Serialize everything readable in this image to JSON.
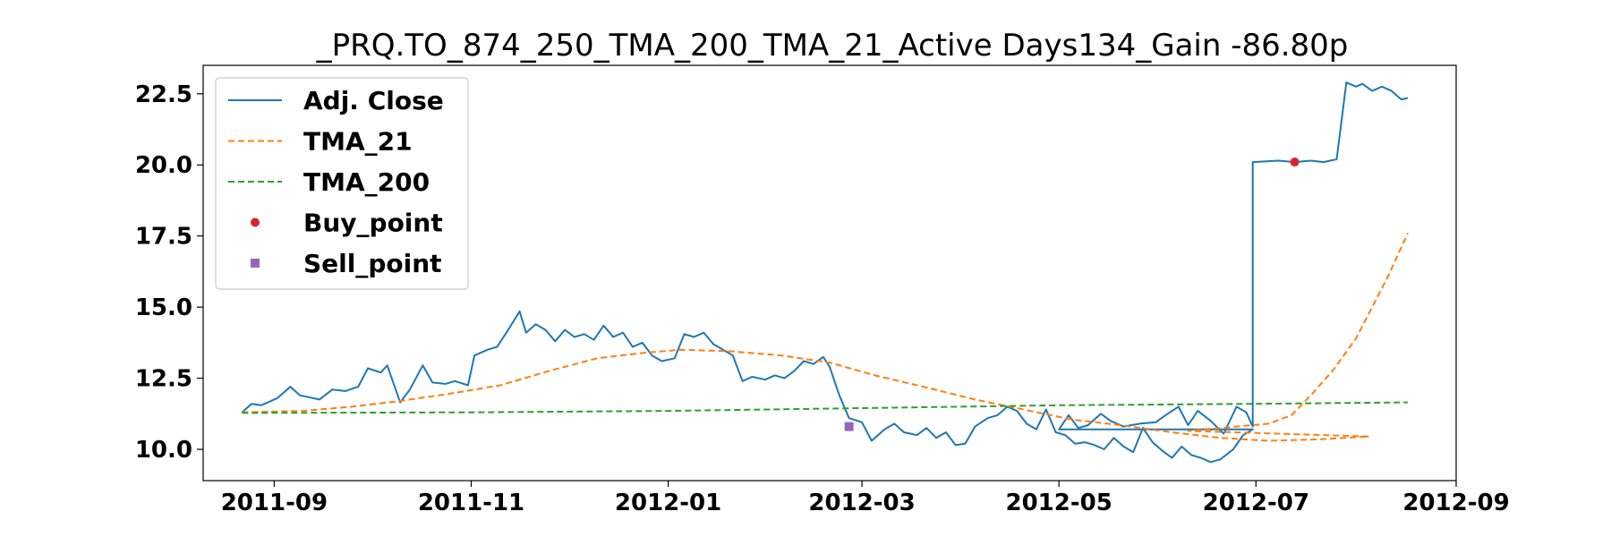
{
  "chart_data": {
    "type": "line",
    "title": "_PRQ.TO_874_250_TMA_200_TMA_21_Active Days134_Gain -86.80p",
    "xlabel": "",
    "ylabel": "",
    "x_ticks": [
      "2011-09",
      "2011-11",
      "2012-01",
      "2012-03",
      "2012-05",
      "2012-07",
      "2012-09"
    ],
    "y_ticks": [
      "10.0",
      "12.5",
      "15.0",
      "17.5",
      "20.0",
      "22.5"
    ],
    "xlim": [
      "2011-08-10",
      "2012-09-01"
    ],
    "ylim": [
      8.9,
      23.5
    ],
    "grid": false,
    "legend_position": "top-left",
    "series": [
      {
        "name": "Adj. Close",
        "style": "solid",
        "color": "#1f77b4",
        "points": [
          [
            "2011-08-22",
            11.3
          ],
          [
            "2011-08-25",
            11.6
          ],
          [
            "2011-08-28",
            11.55
          ],
          [
            "2011-09-02",
            11.8
          ],
          [
            "2011-09-06",
            12.2
          ],
          [
            "2011-09-09",
            11.9
          ],
          [
            "2011-09-15",
            11.75
          ],
          [
            "2011-09-19",
            12.1
          ],
          [
            "2011-09-23",
            12.05
          ],
          [
            "2011-09-27",
            12.2
          ],
          [
            "2011-09-30",
            12.85
          ],
          [
            "2011-10-04",
            12.7
          ],
          [
            "2011-10-06",
            12.95
          ],
          [
            "2011-10-10",
            11.65
          ],
          [
            "2011-10-13",
            12.1
          ],
          [
            "2011-10-17",
            12.95
          ],
          [
            "2011-10-20",
            12.35
          ],
          [
            "2011-10-24",
            12.3
          ],
          [
            "2011-10-27",
            12.4
          ],
          [
            "2011-10-31",
            12.25
          ],
          [
            "2011-11-02",
            13.3
          ],
          [
            "2011-11-06",
            13.5
          ],
          [
            "2011-11-09",
            13.6
          ],
          [
            "2011-11-13",
            14.3
          ],
          [
            "2011-11-16",
            14.85
          ],
          [
            "2011-11-18",
            14.1
          ],
          [
            "2011-11-21",
            14.4
          ],
          [
            "2011-11-24",
            14.2
          ],
          [
            "2011-11-27",
            13.8
          ],
          [
            "2011-11-30",
            14.2
          ],
          [
            "2011-12-03",
            13.95
          ],
          [
            "2011-12-06",
            14.05
          ],
          [
            "2011-12-09",
            13.85
          ],
          [
            "2011-12-12",
            14.35
          ],
          [
            "2011-12-15",
            13.95
          ],
          [
            "2011-12-18",
            14.1
          ],
          [
            "2011-12-21",
            13.6
          ],
          [
            "2011-12-24",
            13.75
          ],
          [
            "2011-12-27",
            13.3
          ],
          [
            "2011-12-30",
            13.1
          ],
          [
            "2012-01-03",
            13.2
          ],
          [
            "2012-01-06",
            14.05
          ],
          [
            "2012-01-09",
            13.95
          ],
          [
            "2012-01-12",
            14.1
          ],
          [
            "2012-01-15",
            13.7
          ],
          [
            "2012-01-18",
            13.5
          ],
          [
            "2012-01-21",
            13.3
          ],
          [
            "2012-01-24",
            12.4
          ],
          [
            "2012-01-27",
            12.55
          ],
          [
            "2012-01-31",
            12.45
          ],
          [
            "2012-02-03",
            12.6
          ],
          [
            "2012-02-06",
            12.5
          ],
          [
            "2012-02-09",
            12.75
          ],
          [
            "2012-02-12",
            13.1
          ],
          [
            "2012-02-15",
            13.0
          ],
          [
            "2012-02-18",
            13.25
          ],
          [
            "2012-02-20",
            12.9
          ],
          [
            "2012-02-23",
            11.9
          ],
          [
            "2012-02-26",
            11.1
          ],
          [
            "2012-03-01",
            10.95
          ],
          [
            "2012-03-04",
            10.3
          ],
          [
            "2012-03-08",
            10.7
          ],
          [
            "2012-03-11",
            10.9
          ],
          [
            "2012-03-14",
            10.6
          ],
          [
            "2012-03-18",
            10.5
          ],
          [
            "2012-03-21",
            10.75
          ],
          [
            "2012-03-24",
            10.4
          ],
          [
            "2012-03-27",
            10.6
          ],
          [
            "2012-03-30",
            10.15
          ],
          [
            "2012-04-02",
            10.2
          ],
          [
            "2012-04-05",
            10.8
          ],
          [
            "2012-04-09",
            11.1
          ],
          [
            "2012-04-12",
            11.2
          ],
          [
            "2012-04-15",
            11.5
          ],
          [
            "2012-04-18",
            11.35
          ],
          [
            "2012-04-21",
            10.9
          ],
          [
            "2012-04-24",
            10.7
          ],
          [
            "2012-04-27",
            11.4
          ],
          [
            "2012-04-30",
            10.6
          ],
          [
            "2012-05-03",
            10.5
          ],
          [
            "2012-05-06",
            10.2
          ],
          [
            "2012-05-09",
            10.25
          ],
          [
            "2012-05-12",
            10.15
          ],
          [
            "2012-05-15",
            10.0
          ],
          [
            "2012-05-18",
            10.4
          ],
          [
            "2012-05-21",
            10.1
          ],
          [
            "2012-05-24",
            9.9
          ],
          [
            "2012-05-27",
            10.75
          ],
          [
            "2012-05-30",
            10.25
          ],
          [
            "2012-06-02",
            9.95
          ],
          [
            "2012-06-05",
            9.7
          ],
          [
            "2012-06-08",
            10.1
          ],
          [
            "2012-06-11",
            9.8
          ],
          [
            "2012-06-14",
            9.7
          ],
          [
            "2012-06-17",
            9.55
          ],
          [
            "2012-06-20",
            9.65
          ],
          [
            "2012-06-24",
            10.0
          ],
          [
            "2012-06-27",
            10.5
          ],
          [
            "2012-06-30",
            10.7
          ],
          [
            "2012-05-01",
            10.7
          ],
          [
            "2012-05-04",
            11.2
          ],
          [
            "2012-05-07",
            10.75
          ],
          [
            "2012-05-10",
            10.85
          ],
          [
            "2012-05-14",
            11.25
          ],
          [
            "2012-05-17",
            11.0
          ],
          [
            "2012-05-21",
            10.8
          ],
          [
            "2012-05-26",
            10.9
          ],
          [
            "2012-05-31",
            10.95
          ],
          [
            "2012-06-03",
            11.2
          ],
          [
            "2012-06-07",
            11.5
          ],
          [
            "2012-06-10",
            10.85
          ],
          [
            "2012-06-13",
            11.35
          ],
          [
            "2012-06-17",
            11.0
          ],
          [
            "2012-06-21",
            10.55
          ],
          [
            "2012-06-25",
            11.5
          ],
          [
            "2012-06-28",
            11.3
          ],
          [
            "2012-06-30",
            10.8
          ],
          [
            "2012-06-30",
            20.1
          ],
          [
            "2012-07-08",
            20.15
          ],
          [
            "2012-07-13",
            20.1
          ],
          [
            "2012-07-18",
            20.15
          ],
          [
            "2012-07-22",
            20.1
          ],
          [
            "2012-07-26",
            20.2
          ],
          [
            "2012-07-29",
            22.9
          ],
          [
            "2012-08-01",
            22.75
          ],
          [
            "2012-08-03",
            22.85
          ],
          [
            "2012-08-06",
            22.6
          ],
          [
            "2012-08-09",
            22.75
          ],
          [
            "2012-08-12",
            22.6
          ],
          [
            "2012-08-15",
            22.3
          ],
          [
            "2012-08-17",
            22.35
          ]
        ]
      },
      {
        "name": "TMA_21",
        "style": "dashed",
        "color": "#ff7f0e",
        "points": [
          [
            "2011-08-22",
            11.3
          ],
          [
            "2011-09-10",
            11.35
          ],
          [
            "2011-09-25",
            11.5
          ],
          [
            "2011-10-10",
            11.7
          ],
          [
            "2011-10-25",
            11.95
          ],
          [
            "2011-11-10",
            12.25
          ],
          [
            "2011-11-25",
            12.75
          ],
          [
            "2011-12-10",
            13.2
          ],
          [
            "2011-12-25",
            13.4
          ],
          [
            "2012-01-05",
            13.5
          ],
          [
            "2012-01-20",
            13.45
          ],
          [
            "2012-02-05",
            13.3
          ],
          [
            "2012-02-20",
            13.05
          ],
          [
            "2012-03-05",
            12.6
          ],
          [
            "2012-03-20",
            12.2
          ],
          [
            "2012-04-05",
            11.75
          ],
          [
            "2012-04-20",
            11.4
          ],
          [
            "2012-05-05",
            11.05
          ],
          [
            "2012-05-20",
            10.85
          ],
          [
            "2012-06-05",
            10.6
          ],
          [
            "2012-06-20",
            10.4
          ],
          [
            "2012-07-05",
            10.3
          ],
          [
            "2012-07-20",
            10.35
          ],
          [
            "2012-08-05",
            10.45
          ],
          [
            "2012-06-10",
            10.65
          ],
          [
            "2012-06-25",
            10.8
          ],
          [
            "2012-07-05",
            10.9
          ],
          [
            "2012-07-12",
            11.2
          ],
          [
            "2012-07-18",
            11.9
          ],
          [
            "2012-07-25",
            12.8
          ],
          [
            "2012-08-01",
            13.9
          ],
          [
            "2012-08-06",
            15.0
          ],
          [
            "2012-08-11",
            16.1
          ],
          [
            "2012-08-17",
            17.6
          ]
        ]
      },
      {
        "name": "TMA_200",
        "style": "dashed",
        "color": "#2ca02c",
        "points": [
          [
            "2011-08-22",
            11.28
          ],
          [
            "2011-11-01",
            11.3
          ],
          [
            "2012-01-01",
            11.35
          ],
          [
            "2012-03-01",
            11.45
          ],
          [
            "2012-05-01",
            11.55
          ],
          [
            "2012-07-01",
            11.6
          ],
          [
            "2012-08-17",
            11.65
          ]
        ]
      },
      {
        "name": "Buy_point",
        "type": "marker",
        "marker": "circle",
        "color": "#d62728",
        "points": [
          [
            "2012-07-13",
            20.1
          ]
        ]
      },
      {
        "name": "Sell_point",
        "type": "marker",
        "marker": "square",
        "color": "#9467bd",
        "points": [
          [
            "2012-02-26",
            10.8
          ]
        ]
      }
    ]
  }
}
